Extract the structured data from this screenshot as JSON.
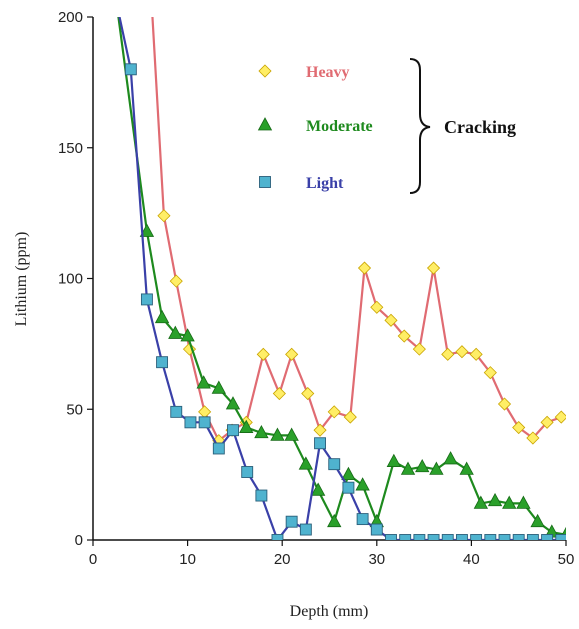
{
  "chart_data": {
    "type": "line",
    "xlabel": "Depth (mm)",
    "ylabel": "Lithium (ppm)",
    "xlim": [
      0,
      50
    ],
    "ylim": [
      0,
      200
    ],
    "xticks": [
      0,
      10,
      20,
      30,
      40,
      50
    ],
    "yticks": [
      0,
      50,
      100,
      150,
      200
    ],
    "grid": false,
    "legend": {
      "placement": "top-right",
      "group_label": "Cracking"
    },
    "series": [
      {
        "name": "Heavy",
        "color": "#e06b72",
        "marker": "diamond",
        "marker_color": "#ffee66",
        "x": [
          2.5,
          6.2,
          7.5,
          8.8,
          10.2,
          11.8,
          13.3,
          14.7,
          16.2,
          18.0,
          19.7,
          21.0,
          22.7,
          24.0,
          25.5,
          27.2,
          28.7,
          30.0,
          31.5,
          32.9,
          34.5,
          36.0,
          37.5,
          39.0,
          40.5,
          42.0,
          43.5,
          45.0,
          46.5,
          48.0,
          49.5
        ],
        "y": [
          205,
          205,
          124,
          99,
          73,
          49,
          38,
          42,
          45,
          71,
          56,
          71,
          56,
          42,
          49,
          47,
          104,
          89,
          84,
          78,
          73,
          104,
          71,
          72,
          71,
          64,
          52,
          43,
          39,
          45,
          47
        ]
      },
      {
        "name": "Moderate",
        "color": "#1e8a1e",
        "marker": "triangle",
        "marker_color": "#2aa02a",
        "x": [
          2.5,
          5.7,
          7.3,
          8.7,
          10.0,
          11.7,
          13.3,
          14.8,
          16.2,
          17.8,
          19.5,
          21.0,
          22.5,
          23.8,
          25.5,
          27.0,
          28.5,
          30.0,
          31.8,
          33.3,
          34.8,
          36.3,
          37.8,
          39.5,
          41.0,
          42.5,
          44.0,
          45.5,
          47.0,
          48.5,
          50.0
        ],
        "y": [
          205,
          118,
          85,
          79,
          78,
          60,
          58,
          52,
          43,
          41,
          40,
          40,
          29,
          19,
          7,
          25,
          21,
          7,
          30,
          27,
          28,
          27,
          31,
          27,
          14,
          15,
          14,
          14,
          7,
          3,
          2
        ]
      },
      {
        "name": "Light",
        "color": "#3a40a8",
        "marker": "square",
        "marker_color": "#4fb3cf",
        "x": [
          2.5,
          4.0,
          5.7,
          7.3,
          8.8,
          10.3,
          11.8,
          13.3,
          14.8,
          16.3,
          17.8,
          19.5,
          21.0,
          22.5,
          24.0,
          25.5,
          27.0,
          28.5,
          30.0,
          31.5,
          33.0,
          34.5,
          36.0,
          37.5,
          39.0,
          40.5,
          42.0,
          43.5,
          45.0,
          46.5,
          48.0,
          49.5
        ],
        "y": [
          205,
          180,
          92,
          68,
          49,
          45,
          45,
          35,
          42,
          26,
          17,
          0,
          7,
          4,
          37,
          29,
          20,
          8,
          4,
          0,
          0,
          0,
          0,
          0,
          0,
          0,
          0,
          0,
          0,
          0,
          0,
          0
        ]
      }
    ]
  }
}
